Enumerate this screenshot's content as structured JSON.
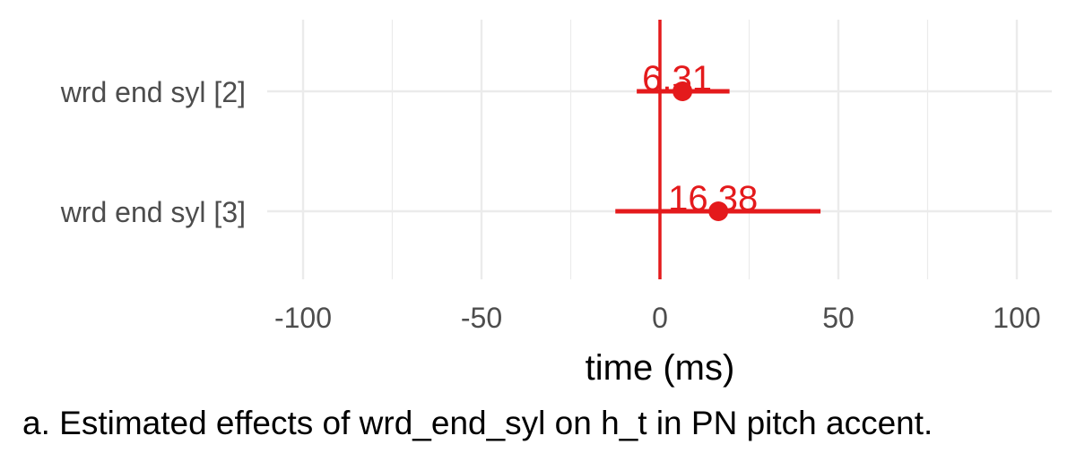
{
  "chart_data": {
    "type": "forest",
    "xlabel": "time (ms)",
    "xlim": [
      -110,
      110
    ],
    "xticks": [
      -100,
      -50,
      0,
      50,
      100
    ],
    "grid": true,
    "reference_line": 0,
    "color": "#e41a1c",
    "categories": [
      "wrd end syl [2]",
      "wrd end syl [3]"
    ],
    "estimates": [
      {
        "term": "wrd end syl [2]",
        "estimate": 6.31,
        "label": "6.31",
        "ci_low": -6.5,
        "ci_high": 19.5
      },
      {
        "term": "wrd end syl [3]",
        "estimate": 16.38,
        "label": "16.38",
        "ci_low": -12.5,
        "ci_high": 45.0
      }
    ]
  },
  "caption": "a. Estimated effects of wrd_end_syl on h_t in PN pitch accent."
}
